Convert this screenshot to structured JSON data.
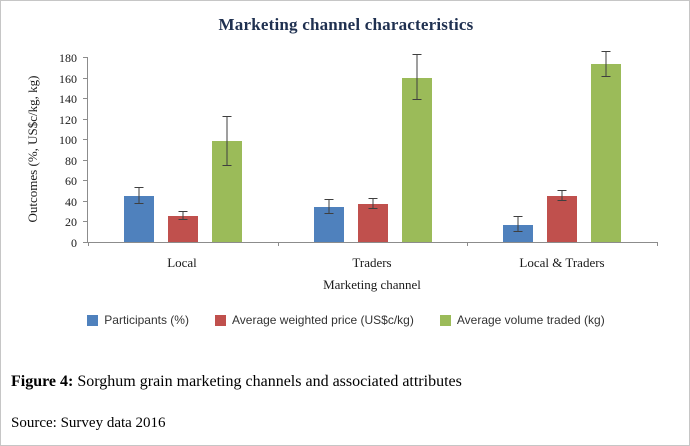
{
  "chart_data": {
    "type": "bar",
    "title": "Marketing channel characteristics",
    "xlabel": "Marketing channel",
    "ylabel": "Outcomes (%, US$c/kg, kg)",
    "ylim": [
      0,
      180
    ],
    "ytick_step": 20,
    "grid": false,
    "legend_position": "bottom",
    "error_bars": true,
    "categories": [
      "Local",
      "Traders",
      "Local & Traders"
    ],
    "series": [
      {
        "name": "Participants (%)",
        "color": "#4f81bd",
        "values": [
          45,
          34,
          17
        ],
        "errors": [
          8,
          7,
          7
        ]
      },
      {
        "name": "Average weighted price (US$c/kg)",
        "color": "#c0504d",
        "values": [
          25,
          37,
          45
        ],
        "errors": [
          4,
          5,
          5
        ]
      },
      {
        "name": "Average volume traded (kg)",
        "color": "#9bbb59",
        "values": [
          98,
          160,
          173
        ],
        "errors": [
          24,
          22,
          12
        ]
      }
    ]
  },
  "caption": {
    "figure_label": "Figure 4:",
    "figure_text": " Sorghum grain marketing channels and associated attributes",
    "source": "Source: Survey data 2016"
  }
}
